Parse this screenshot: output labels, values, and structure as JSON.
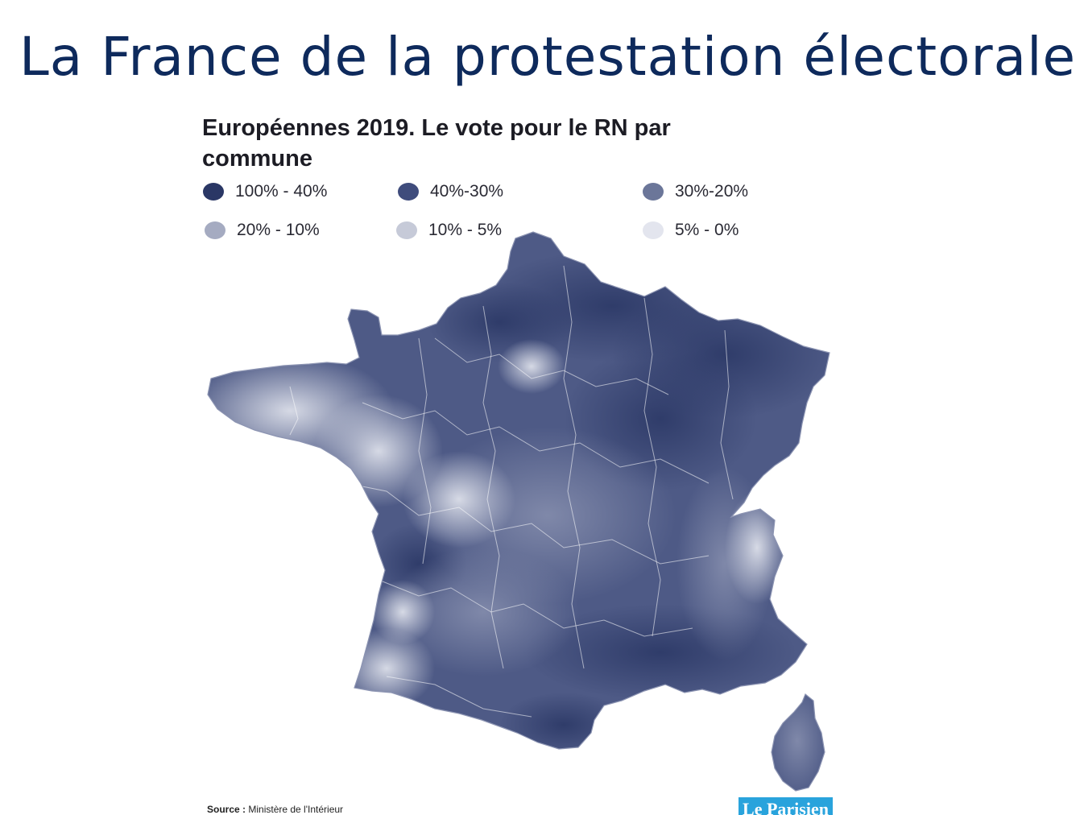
{
  "slide": {
    "title": "La France de la protestation électorale"
  },
  "map": {
    "title": "Européennes 2019. Le vote pour le RN par commune",
    "legend": [
      {
        "label": "100% - 40%",
        "color": "#2a3765"
      },
      {
        "label": "40%-30%",
        "color": "#3f4c7c"
      },
      {
        "label": "30%-20%",
        "color": "#6b7699"
      },
      {
        "label": "20% - 10%",
        "color": "#a5abc1"
      },
      {
        "label": "10% - 5%",
        "color": "#c6cad8"
      },
      {
        "label": "5% - 0%",
        "color": "#e3e5ee"
      }
    ],
    "source_label": "Source :",
    "source_text": "Ministère de l'Intérieur",
    "logo": "Le Parisien"
  }
}
